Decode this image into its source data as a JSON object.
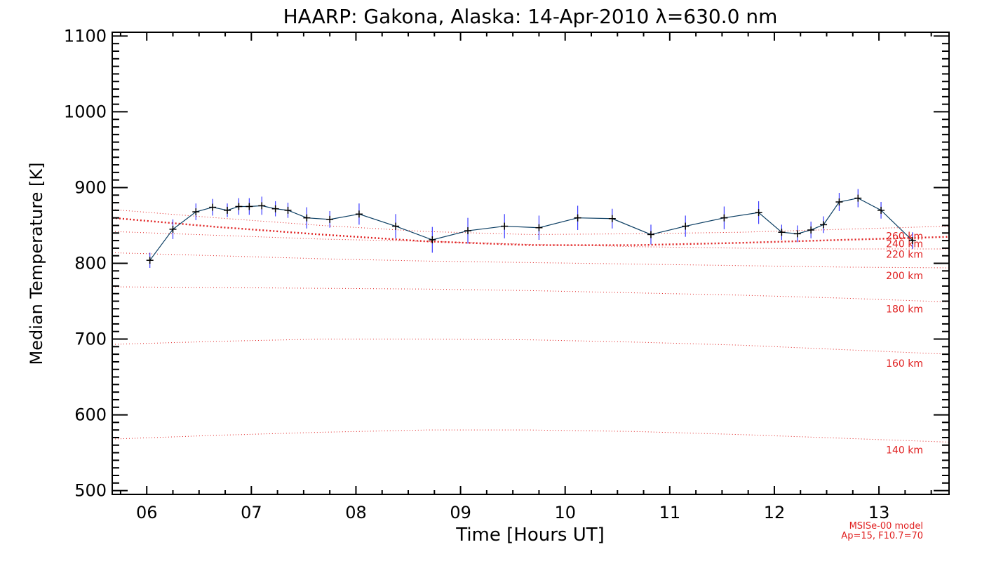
{
  "chart_data": {
    "type": "line",
    "title": "HAARP: Gakona,  Alaska: 14-Apr-2010 λ=630.0 nm",
    "xlabel": "Time [Hours UT]",
    "ylabel": "Median Temperature [K]",
    "xlim": [
      5.67,
      13.67
    ],
    "ylim": [
      495,
      1105
    ],
    "xticks": [
      6,
      7,
      8,
      9,
      10,
      11,
      12,
      13
    ],
    "xtick_labels": [
      "06",
      "07",
      "08",
      "09",
      "10",
      "11",
      "12",
      "13"
    ],
    "yticks": [
      500,
      600,
      700,
      800,
      900,
      1000,
      1100
    ],
    "ytick_labels": [
      "500",
      "600",
      "700",
      "800",
      "900",
      "1000",
      "1100"
    ],
    "grid": false,
    "colors": {
      "measured": "#0a3d62",
      "error_bars": "#3a3aff",
      "model": "#e02020",
      "axes": "#000000"
    },
    "series": [
      {
        "x": [
          6.03,
          6.25,
          6.47,
          6.63,
          6.77,
          6.88,
          6.98,
          7.1,
          7.23,
          7.35,
          7.53,
          7.75,
          8.03,
          8.38,
          8.73,
          9.07,
          9.42,
          9.75,
          10.12,
          10.45,
          10.82,
          11.15,
          11.52,
          11.85,
          12.07,
          12.22,
          12.35,
          12.47,
          12.62,
          12.8,
          13.02,
          13.32
        ],
        "y": [
          804,
          845,
          868,
          874,
          870,
          875,
          875,
          876,
          872,
          870,
          860,
          858,
          865,
          849,
          831,
          843,
          849,
          847,
          860,
          859,
          838,
          849,
          860,
          867,
          841,
          839,
          844,
          851,
          881,
          886,
          870,
          830
        ],
        "errors": [
          10,
          13,
          11,
          11,
          9,
          11,
          11,
          12,
          10,
          10,
          14,
          11,
          14,
          16,
          17,
          17,
          16,
          16,
          16,
          13,
          13,
          14,
          15,
          15,
          10,
          11,
          11,
          11,
          12,
          12,
          11,
          11
        ]
      }
    ],
    "model_curves": [
      {
        "name": "260 km",
        "x": [
          5.67,
          6.67,
          7.67,
          8.67,
          9.67,
          10.67,
          11.67,
          12.67,
          13.67
        ],
        "y": [
          871,
          860,
          850,
          842,
          838,
          839,
          841,
          845,
          849
        ]
      },
      {
        "name": "240 km",
        "x": [
          5.67,
          6.67,
          7.67,
          8.67,
          9.67,
          10.67,
          11.67,
          12.67,
          13.67
        ],
        "y": [
          860,
          848,
          838,
          829,
          824,
          824,
          827,
          831,
          835
        ]
      },
      {
        "name": "220 km",
        "x": [
          5.67,
          6.67,
          7.67,
          8.67,
          9.67,
          10.67,
          11.67,
          12.67,
          13.67
        ],
        "y": [
          842,
          837,
          832,
          829,
          825,
          822,
          820,
          819,
          819
        ]
      },
      {
        "name": "200 km",
        "x": [
          5.67,
          6.67,
          7.67,
          8.67,
          9.67,
          10.67,
          11.67,
          12.67,
          13.67
        ],
        "y": [
          814,
          810,
          806,
          803,
          801,
          799,
          797,
          795,
          794
        ]
      },
      {
        "name": "180 km",
        "x": [
          5.67,
          6.67,
          7.67,
          8.67,
          9.67,
          10.67,
          11.67,
          12.67,
          13.67
        ],
        "y": [
          769,
          768,
          767,
          766,
          764,
          761,
          758,
          754,
          749
        ]
      },
      {
        "name": "160 km",
        "x": [
          5.67,
          6.67,
          7.67,
          8.67,
          9.67,
          10.67,
          11.67,
          12.67,
          13.67
        ],
        "y": [
          693,
          697,
          700,
          700,
          699,
          696,
          692,
          686,
          680
        ]
      },
      {
        "name": "140 km",
        "x": [
          5.67,
          6.67,
          7.67,
          8.67,
          9.67,
          10.67,
          11.67,
          12.67,
          13.67
        ],
        "y": [
          568,
          573,
          577,
          580,
          580,
          578,
          574,
          569,
          564
        ]
      }
    ],
    "model_label_y": [
      836,
      826,
      812,
      784,
      740,
      668,
      554
    ],
    "annotations": [
      "MSISe-00 model",
      "Ap=15, F10.7=70"
    ]
  }
}
